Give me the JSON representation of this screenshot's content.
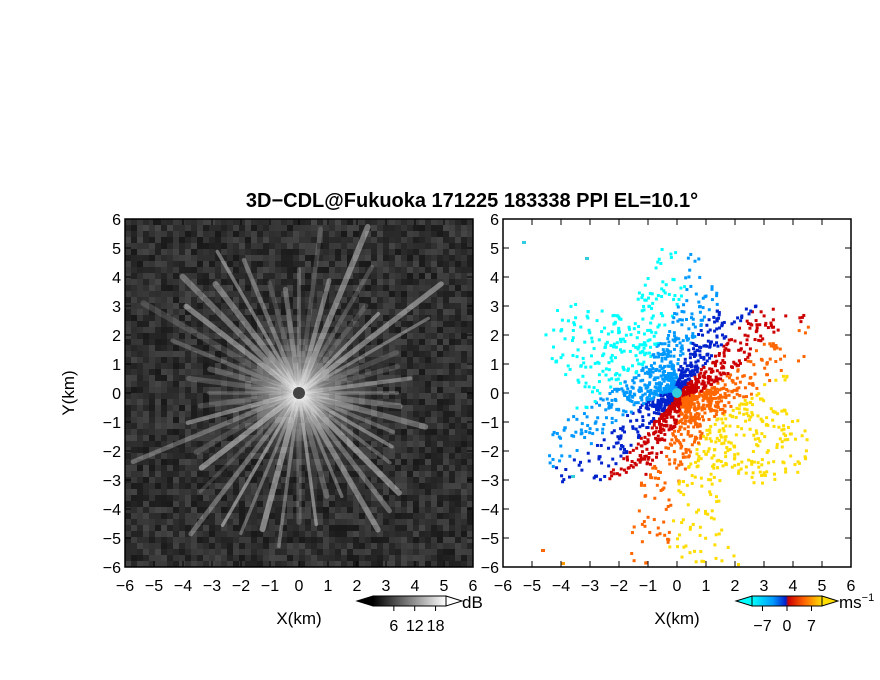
{
  "title": "3D−CDL@Fukuoka 171225 183338 PPI EL=10.1°",
  "chart_data": [
    {
      "type": "heatmap",
      "variable": "backscatter intensity",
      "xlabel": "X(km)",
      "ylabel": "Y(km)",
      "xlim": [
        -6,
        6
      ],
      "ylim": [
        -6,
        6
      ],
      "xticks": [
        "−6",
        "−5",
        "−4",
        "−3",
        "−2",
        "−1",
        "0",
        "1",
        "2",
        "3",
        "4",
        "5",
        "6"
      ],
      "yticks": [
        "−6",
        "−5",
        "−4",
        "−3",
        "−2",
        "−1",
        "0",
        "1",
        "2",
        "3",
        "4",
        "5",
        "6"
      ],
      "colorbar": {
        "unit": "dB",
        "ticks": [
          "6",
          "12",
          "18"
        ],
        "tick_values": [
          6,
          12,
          18
        ],
        "range": [
          0,
          21
        ],
        "colors": [
          "#000000",
          "#ffffff"
        ]
      },
      "center": [
        0,
        0
      ]
    },
    {
      "type": "heatmap",
      "variable": "radial velocity",
      "xlabel": "X(km)",
      "xlim": [
        -6,
        6
      ],
      "ylim": [
        -6,
        6
      ],
      "xticks": [
        "−6",
        "−5",
        "−4",
        "−3",
        "−2",
        "−1",
        "0",
        "1",
        "2",
        "3",
        "4",
        "5",
        "6"
      ],
      "yticks": [
        "−6",
        "−5",
        "−4",
        "−3",
        "−2",
        "−1",
        "0",
        "1",
        "2",
        "3",
        "4",
        "5",
        "6"
      ],
      "colorbar": {
        "unit": "ms",
        "unit_exponent": "−1",
        "ticks": [
          "−7",
          "0",
          "7"
        ],
        "tick_values": [
          -7,
          0,
          7
        ],
        "range": [
          -10,
          10
        ],
        "colors": [
          "#00ffff",
          "#0099ff",
          "#0022cc",
          "#cc0000",
          "#ff6600",
          "#ffdd00"
        ]
      },
      "center": [
        0,
        0
      ]
    }
  ]
}
